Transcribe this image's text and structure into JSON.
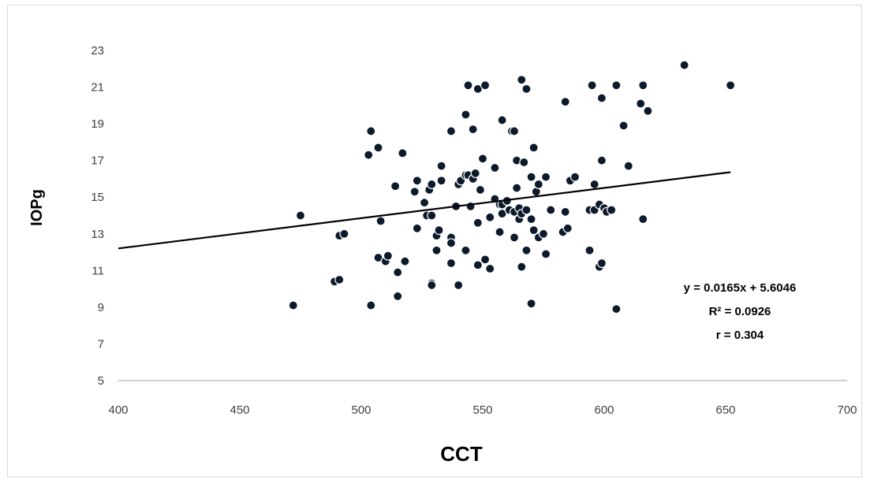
{
  "chart_data": {
    "type": "scatter",
    "title": "",
    "xlabel": "CCT",
    "ylabel": "IOPg",
    "xlim": [
      400,
      700
    ],
    "ylim": [
      5,
      23
    ],
    "x_ticks": [
      "400",
      "450",
      "500",
      "550",
      "600",
      "650",
      "700"
    ],
    "y_ticks": [
      "5",
      "7",
      "9",
      "11",
      "13",
      "15",
      "17",
      "19",
      "21",
      "23"
    ],
    "grid": false,
    "legend": "none",
    "colors": {
      "marker_fill": "#0d1a2b",
      "marker_stroke": "#ffffff",
      "trendline": "#000000",
      "axis": "#bfbfbf"
    },
    "trendline": {
      "slope": 0.0165,
      "intercept": 5.6046,
      "x_range": [
        400,
        652
      ]
    },
    "annotations": [
      "y = 0.0165x + 5.6046",
      "R² = 0.0926",
      "r = 0.304"
    ],
    "series": [
      {
        "points": [
          [
            472,
            9.1
          ],
          [
            475,
            14.0
          ],
          [
            489,
            10.4
          ],
          [
            491,
            10.5
          ],
          [
            491,
            12.9
          ],
          [
            493,
            13.0
          ],
          [
            503,
            17.3
          ],
          [
            504,
            18.6
          ],
          [
            504,
            9.1
          ],
          [
            507,
            17.7
          ],
          [
            507,
            11.7
          ],
          [
            508,
            13.7
          ],
          [
            510,
            11.5
          ],
          [
            511,
            11.8
          ],
          [
            514,
            15.6
          ],
          [
            515,
            10.9
          ],
          [
            515,
            9.6
          ],
          [
            517,
            17.4
          ],
          [
            518,
            11.5
          ],
          [
            522,
            15.3
          ],
          [
            523,
            15.9
          ],
          [
            523,
            13.3
          ],
          [
            526,
            14.7
          ],
          [
            527,
            14.0
          ],
          [
            528,
            15.4
          ],
          [
            529,
            15.7
          ],
          [
            529,
            14.0
          ],
          [
            529,
            10.3
          ],
          [
            529,
            10.2
          ],
          [
            531,
            12.1
          ],
          [
            531,
            12.9
          ],
          [
            532,
            13.2
          ],
          [
            533,
            16.7
          ],
          [
            533,
            15.9
          ],
          [
            537,
            18.6
          ],
          [
            537,
            12.8
          ],
          [
            537,
            12.5
          ],
          [
            537,
            11.4
          ],
          [
            539,
            14.5
          ],
          [
            540,
            10.2
          ],
          [
            540,
            15.7
          ],
          [
            541,
            15.9
          ],
          [
            543,
            16.2
          ],
          [
            543,
            12.1
          ],
          [
            543,
            19.5
          ],
          [
            544,
            21.1
          ],
          [
            544,
            16.2
          ],
          [
            545,
            14.5
          ],
          [
            546,
            18.7
          ],
          [
            546,
            16.0
          ],
          [
            547,
            16.3
          ],
          [
            548,
            20.9
          ],
          [
            548,
            13.6
          ],
          [
            548,
            11.3
          ],
          [
            549,
            15.4
          ],
          [
            550,
            17.1
          ],
          [
            551,
            21.1
          ],
          [
            551,
            11.6
          ],
          [
            553,
            13.9
          ],
          [
            553,
            11.1
          ],
          [
            555,
            16.6
          ],
          [
            555,
            14.9
          ],
          [
            557,
            14.6
          ],
          [
            557,
            13.1
          ],
          [
            558,
            19.2
          ],
          [
            558,
            14.6
          ],
          [
            558,
            14.1
          ],
          [
            560,
            14.8
          ],
          [
            561,
            14.3
          ],
          [
            562,
            18.6
          ],
          [
            563,
            18.6
          ],
          [
            563,
            14.2
          ],
          [
            563,
            12.8
          ],
          [
            564,
            17.0
          ],
          [
            564,
            15.5
          ],
          [
            565,
            14.4
          ],
          [
            565,
            13.8
          ],
          [
            566,
            21.4
          ],
          [
            566,
            14.1
          ],
          [
            566,
            11.2
          ],
          [
            567,
            16.9
          ],
          [
            568,
            20.9
          ],
          [
            568,
            14.3
          ],
          [
            568,
            12.1
          ],
          [
            570,
            16.1
          ],
          [
            570,
            13.8
          ],
          [
            570,
            9.2
          ],
          [
            571,
            17.7
          ],
          [
            571,
            13.2
          ],
          [
            572,
            15.3
          ],
          [
            573,
            15.7
          ],
          [
            573,
            12.8
          ],
          [
            575,
            13.0
          ],
          [
            576,
            16.1
          ],
          [
            576,
            11.9
          ],
          [
            578,
            14.3
          ],
          [
            583,
            13.1
          ],
          [
            584,
            20.2
          ],
          [
            584,
            14.2
          ],
          [
            585,
            13.3
          ],
          [
            586,
            15.9
          ],
          [
            588,
            16.1
          ],
          [
            594,
            14.3
          ],
          [
            594,
            12.1
          ],
          [
            595,
            21.1
          ],
          [
            596,
            15.7
          ],
          [
            596,
            14.3
          ],
          [
            598,
            14.6
          ],
          [
            598,
            11.2
          ],
          [
            599,
            20.4
          ],
          [
            599,
            17.0
          ],
          [
            599,
            11.4
          ],
          [
            600,
            14.4
          ],
          [
            601,
            14.2
          ],
          [
            603,
            14.3
          ],
          [
            605,
            21.1
          ],
          [
            605,
            8.9
          ],
          [
            608,
            18.9
          ],
          [
            610,
            16.7
          ],
          [
            615,
            20.1
          ],
          [
            616,
            21.1
          ],
          [
            616,
            13.8
          ],
          [
            618,
            19.7
          ],
          [
            633,
            22.2
          ],
          [
            652,
            21.1
          ]
        ]
      }
    ]
  }
}
